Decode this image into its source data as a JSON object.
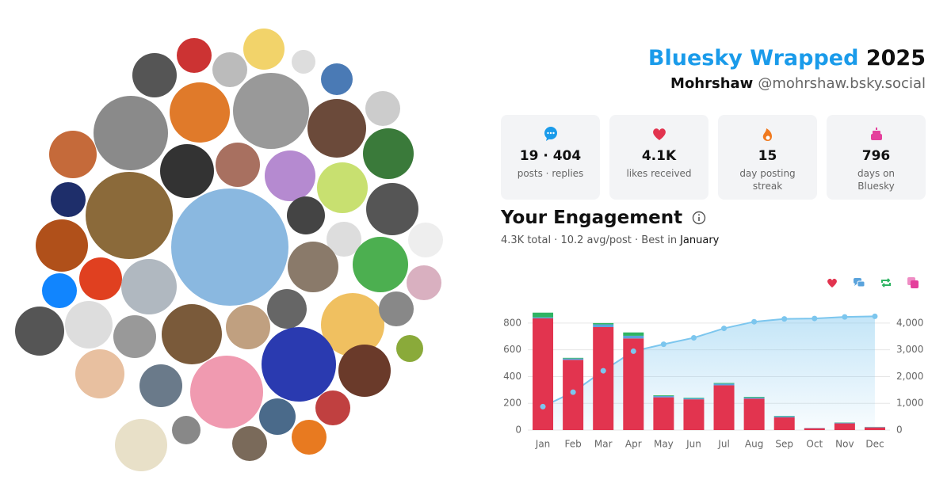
{
  "header": {
    "title": "Bluesky Wrapped",
    "year": "2025",
    "name": "Mohrshaw",
    "handle": "@mohrshaw.bsky.social"
  },
  "stats": [
    {
      "value": "19 · 404",
      "label": "posts · replies"
    },
    {
      "value": "4.1K",
      "label": "likes received"
    },
    {
      "value": "15",
      "label": "day posting streak"
    },
    {
      "value": "796",
      "label": "days on Bluesky"
    }
  ],
  "engagement": {
    "title": "Your Engagement",
    "summary": "4.3K total · 10.2 avg/post · Best in",
    "best_month": "January"
  },
  "chart_data": {
    "type": "bar",
    "categories": [
      "Jan",
      "Feb",
      "Mar",
      "Apr",
      "May",
      "Jun",
      "Jul",
      "Aug",
      "Sep",
      "Oct",
      "Nov",
      "Dec"
    ],
    "series": [
      {
        "color": "#e2344f",
        "values": [
          835,
          525,
          770,
          685,
          245,
          230,
          335,
          235,
          95,
          14,
          50,
          20
        ]
      },
      {
        "color": "#5aa3dc",
        "values": [
          8,
          10,
          20,
          20,
          10,
          8,
          12,
          8,
          8,
          2,
          5,
          3
        ]
      },
      {
        "color": "#2fb463",
        "values": [
          35,
          5,
          10,
          25,
          5,
          4,
          5,
          5,
          3,
          0,
          2,
          1
        ]
      },
      {
        "color": "#e4409c",
        "values": [
          0,
          0,
          0,
          0,
          0,
          0,
          0,
          0,
          0,
          0,
          0,
          0
        ]
      },
      {
        "color": "#7cc6ee",
        "axis": "y2",
        "values": [
          878,
          1418,
          2218,
          2948,
          3208,
          3450,
          3802,
          4050,
          4156,
          4172,
          4229,
          4253
        ]
      }
    ],
    "ylim": [
      0,
      900
    ],
    "yticks": [
      0,
      200,
      400,
      600,
      800
    ],
    "y2lim": [
      0,
      4500
    ],
    "y2ticks": [
      0,
      {
        "value": 1000,
        "label": "1,000"
      },
      {
        "value": 2000,
        "label": "2,000"
      },
      {
        "value": 3000,
        "label": "3,000"
      },
      {
        "value": 4000,
        "label": "4,000"
      }
    ],
    "grid": true
  }
}
